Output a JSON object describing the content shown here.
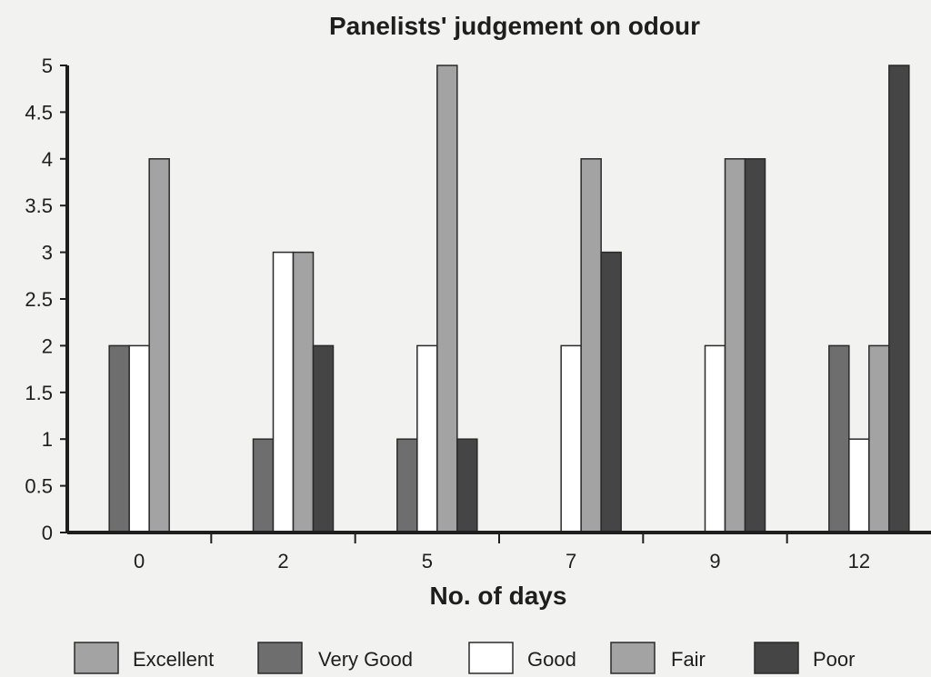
{
  "chart_data": {
    "type": "bar",
    "title": "Panelists' judgement on odour",
    "xlabel": "No. of days",
    "ylabel": "",
    "categories": [
      "0",
      "2",
      "5",
      "7",
      "9",
      "12"
    ],
    "ylim": [
      0,
      5
    ],
    "yticks": [
      "0",
      "0.5",
      "1",
      "1.5",
      "2",
      "2.5",
      "3",
      "3.5",
      "4",
      "4.5",
      "5"
    ],
    "grid": false,
    "legend_position": "bottom",
    "series": [
      {
        "name": "Excellent",
        "color": "#a3a3a3",
        "values": [
          0,
          0,
          0,
          0,
          0,
          0
        ]
      },
      {
        "name": "Very Good",
        "color": "#6e6e6e",
        "values": [
          2,
          1,
          1,
          0,
          0,
          2
        ]
      },
      {
        "name": "Good",
        "color": "#ffffff",
        "values": [
          2,
          3,
          2,
          2,
          2,
          1
        ]
      },
      {
        "name": "Fair",
        "color": "#a3a3a3",
        "values": [
          4,
          3,
          5,
          4,
          4,
          2
        ]
      },
      {
        "name": "Poor",
        "color": "#454545",
        "values": [
          0,
          2,
          1,
          3,
          4,
          5
        ]
      }
    ]
  }
}
